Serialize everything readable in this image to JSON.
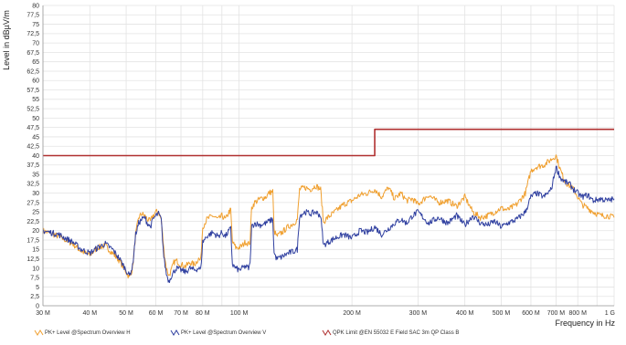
{
  "chart_data": {
    "type": "line",
    "title": "",
    "xlabel": "Frequency in Hz",
    "ylabel": "Level in dBµV/m",
    "x_scale": "log",
    "xlim": [
      30000000,
      1000000000
    ],
    "ylim": [
      0,
      80
    ],
    "grid": true,
    "legend_position": "bottom",
    "y_ticks": [
      "0",
      "2,5",
      "5",
      "7,5",
      "10",
      "12,5",
      "15",
      "17,5",
      "20",
      "22,5",
      "25",
      "27,5",
      "30",
      "32,5",
      "35",
      "37,5",
      "40",
      "42,5",
      "45",
      "47,5",
      "50",
      "52,5",
      "55",
      "57,5",
      "60",
      "62,5",
      "65",
      "67,5",
      "70",
      "72,5",
      "75",
      "77,5",
      "80"
    ],
    "x_ticks": [
      {
        "value": 30000000,
        "label": "30 M"
      },
      {
        "value": 40000000,
        "label": "40 M"
      },
      {
        "value": 50000000,
        "label": "50 M"
      },
      {
        "value": 60000000,
        "label": "60 M"
      },
      {
        "value": 70000000,
        "label": "70 M"
      },
      {
        "value": 80000000,
        "label": "80 M"
      },
      {
        "value": 100000000,
        "label": "100 M"
      },
      {
        "value": 200000000,
        "label": "200 M"
      },
      {
        "value": 300000000,
        "label": "300 M"
      },
      {
        "value": 400000000,
        "label": "400 M"
      },
      {
        "value": 500000000,
        "label": "500 M"
      },
      {
        "value": 600000000,
        "label": "600 M"
      },
      {
        "value": 700000000,
        "label": "700 M"
      },
      {
        "value": 800000000,
        "label": "800 M"
      },
      {
        "value": 1000000000,
        "label": "1 G"
      }
    ],
    "minor_x": [
      90000000,
      900000000
    ],
    "series": [
      {
        "name": "PK+ Level @Spectrum Overview H",
        "color": "#f0a030",
        "points": [
          [
            30,
            20
          ],
          [
            33,
            18.5
          ],
          [
            36,
            16.5
          ],
          [
            38,
            14.5
          ],
          [
            40,
            13.5
          ],
          [
            42,
            15.5
          ],
          [
            44,
            16
          ],
          [
            46,
            14
          ],
          [
            48,
            12
          ],
          [
            50,
            9
          ],
          [
            51,
            7.5
          ],
          [
            52,
            10
          ],
          [
            53,
            19
          ],
          [
            54,
            23.5
          ],
          [
            55,
            24.5
          ],
          [
            56,
            24
          ],
          [
            57,
            23
          ],
          [
            58,
            22.5
          ],
          [
            59,
            24
          ],
          [
            60,
            25
          ],
          [
            61,
            25
          ],
          [
            62,
            23
          ],
          [
            63,
            15
          ],
          [
            64,
            10
          ],
          [
            65,
            8
          ],
          [
            66,
            9.5
          ],
          [
            67,
            11.5
          ],
          [
            68,
            12
          ],
          [
            70,
            11
          ],
          [
            72,
            10.5
          ],
          [
            74,
            11.5
          ],
          [
            76,
            11
          ],
          [
            78,
            12.5
          ],
          [
            79,
            12
          ],
          [
            80,
            21
          ],
          [
            82,
            23
          ],
          [
            85,
            24
          ],
          [
            88,
            23
          ],
          [
            90,
            24
          ],
          [
            92,
            23
          ],
          [
            94,
            25
          ],
          [
            95,
            25.5
          ],
          [
            96,
            17
          ],
          [
            98,
            15.5
          ],
          [
            100,
            15.5
          ],
          [
            102,
            16
          ],
          [
            104,
            17
          ],
          [
            106,
            16.5
          ],
          [
            107,
            17
          ],
          [
            108,
            26
          ],
          [
            110,
            27.5
          ],
          [
            114,
            28.5
          ],
          [
            118,
            29
          ],
          [
            120,
            30
          ],
          [
            123,
            30.5
          ],
          [
            124,
            20
          ],
          [
            126,
            18.5
          ],
          [
            130,
            19.5
          ],
          [
            135,
            21
          ],
          [
            140,
            22
          ],
          [
            143,
            23
          ],
          [
            145,
            31
          ],
          [
            150,
            31.5
          ],
          [
            155,
            31
          ],
          [
            160,
            32
          ],
          [
            165,
            31
          ],
          [
            168,
            22
          ],
          [
            170,
            23
          ],
          [
            180,
            25
          ],
          [
            190,
            27
          ],
          [
            200,
            28
          ],
          [
            210,
            29.5
          ],
          [
            220,
            30
          ],
          [
            230,
            31
          ],
          [
            240,
            29
          ],
          [
            250,
            31.5
          ],
          [
            260,
            28.5
          ],
          [
            270,
            30
          ],
          [
            280,
            28
          ],
          [
            290,
            28.5
          ],
          [
            300,
            27
          ],
          [
            320,
            29.5
          ],
          [
            340,
            27.5
          ],
          [
            360,
            28
          ],
          [
            380,
            26.5
          ],
          [
            400,
            29
          ],
          [
            420,
            25
          ],
          [
            440,
            23.5
          ],
          [
            460,
            24
          ],
          [
            480,
            25
          ],
          [
            500,
            26
          ],
          [
            520,
            25.5
          ],
          [
            550,
            27
          ],
          [
            580,
            30
          ],
          [
            600,
            36
          ],
          [
            620,
            37
          ],
          [
            650,
            37.5
          ],
          [
            680,
            39
          ],
          [
            700,
            40
          ],
          [
            720,
            36
          ],
          [
            740,
            33
          ],
          [
            760,
            32
          ],
          [
            780,
            31
          ],
          [
            800,
            29
          ],
          [
            820,
            27
          ],
          [
            850,
            26
          ],
          [
            880,
            25
          ],
          [
            920,
            24
          ],
          [
            960,
            24
          ],
          [
            1000,
            23.5
          ]
        ]
      },
      {
        "name": "PK+ Level @Spectrum Overview V",
        "color": "#3040a0",
        "points": [
          [
            30,
            20
          ],
          [
            33,
            19
          ],
          [
            36,
            17
          ],
          [
            38,
            15
          ],
          [
            40,
            14
          ],
          [
            42,
            15.5
          ],
          [
            44,
            16.5
          ],
          [
            46,
            15
          ],
          [
            48,
            12.5
          ],
          [
            50,
            9.5
          ],
          [
            51,
            8
          ],
          [
            52,
            10.5
          ],
          [
            53,
            19
          ],
          [
            54,
            22
          ],
          [
            55,
            23
          ],
          [
            56,
            23.5
          ],
          [
            57,
            22
          ],
          [
            58,
            21
          ],
          [
            59,
            23
          ],
          [
            60,
            24
          ],
          [
            61,
            24.5
          ],
          [
            62,
            23
          ],
          [
            63,
            13
          ],
          [
            64,
            8.5
          ],
          [
            65,
            6.5
          ],
          [
            66,
            8
          ],
          [
            67,
            9
          ],
          [
            68,
            10
          ],
          [
            70,
            9.5
          ],
          [
            72,
            9
          ],
          [
            74,
            10
          ],
          [
            76,
            9.5
          ],
          [
            78,
            10
          ],
          [
            79,
            9.5
          ],
          [
            80,
            17
          ],
          [
            82,
            18.5
          ],
          [
            85,
            19.5
          ],
          [
            88,
            18.5
          ],
          [
            90,
            19.5
          ],
          [
            92,
            18.5
          ],
          [
            94,
            20
          ],
          [
            95,
            20.5
          ],
          [
            96,
            11
          ],
          [
            98,
            10
          ],
          [
            100,
            9.5
          ],
          [
            102,
            10
          ],
          [
            104,
            10.5
          ],
          [
            106,
            10
          ],
          [
            107,
            11
          ],
          [
            108,
            21
          ],
          [
            110,
            22
          ],
          [
            114,
            21.5
          ],
          [
            118,
            22
          ],
          [
            120,
            22.5
          ],
          [
            123,
            23
          ],
          [
            124,
            14
          ],
          [
            126,
            12.5
          ],
          [
            130,
            13
          ],
          [
            135,
            14
          ],
          [
            140,
            14.5
          ],
          [
            143,
            15
          ],
          [
            145,
            24
          ],
          [
            150,
            25
          ],
          [
            155,
            24.5
          ],
          [
            160,
            25
          ],
          [
            165,
            24
          ],
          [
            168,
            16
          ],
          [
            170,
            16.5
          ],
          [
            180,
            18
          ],
          [
            190,
            19
          ],
          [
            200,
            18
          ],
          [
            210,
            20
          ],
          [
            220,
            19.5
          ],
          [
            230,
            21
          ],
          [
            240,
            19
          ],
          [
            250,
            20.5
          ],
          [
            260,
            22
          ],
          [
            270,
            23
          ],
          [
            280,
            22
          ],
          [
            290,
            24
          ],
          [
            300,
            25
          ],
          [
            320,
            22
          ],
          [
            340,
            23.5
          ],
          [
            360,
            22
          ],
          [
            380,
            24
          ],
          [
            400,
            21.5
          ],
          [
            420,
            24
          ],
          [
            440,
            22
          ],
          [
            460,
            21.5
          ],
          [
            480,
            22.5
          ],
          [
            500,
            21
          ],
          [
            520,
            22
          ],
          [
            550,
            23
          ],
          [
            580,
            25
          ],
          [
            600,
            29
          ],
          [
            620,
            30
          ],
          [
            650,
            29
          ],
          [
            680,
            31
          ],
          [
            700,
            37
          ],
          [
            720,
            34
          ],
          [
            740,
            33
          ],
          [
            760,
            32.5
          ],
          [
            780,
            31
          ],
          [
            800,
            30
          ],
          [
            820,
            29
          ],
          [
            850,
            29.5
          ],
          [
            880,
            28
          ],
          [
            920,
            28.5
          ],
          [
            960,
            28
          ],
          [
            1000,
            28.5
          ]
        ]
      },
      {
        "name": "QPK Limit @EN 55032 E Field SAC 3m QP Class B",
        "color": "#b03030",
        "points": [
          [
            30,
            40
          ],
          [
            230,
            40
          ],
          [
            230,
            47
          ],
          [
            1000,
            47
          ]
        ]
      }
    ]
  }
}
